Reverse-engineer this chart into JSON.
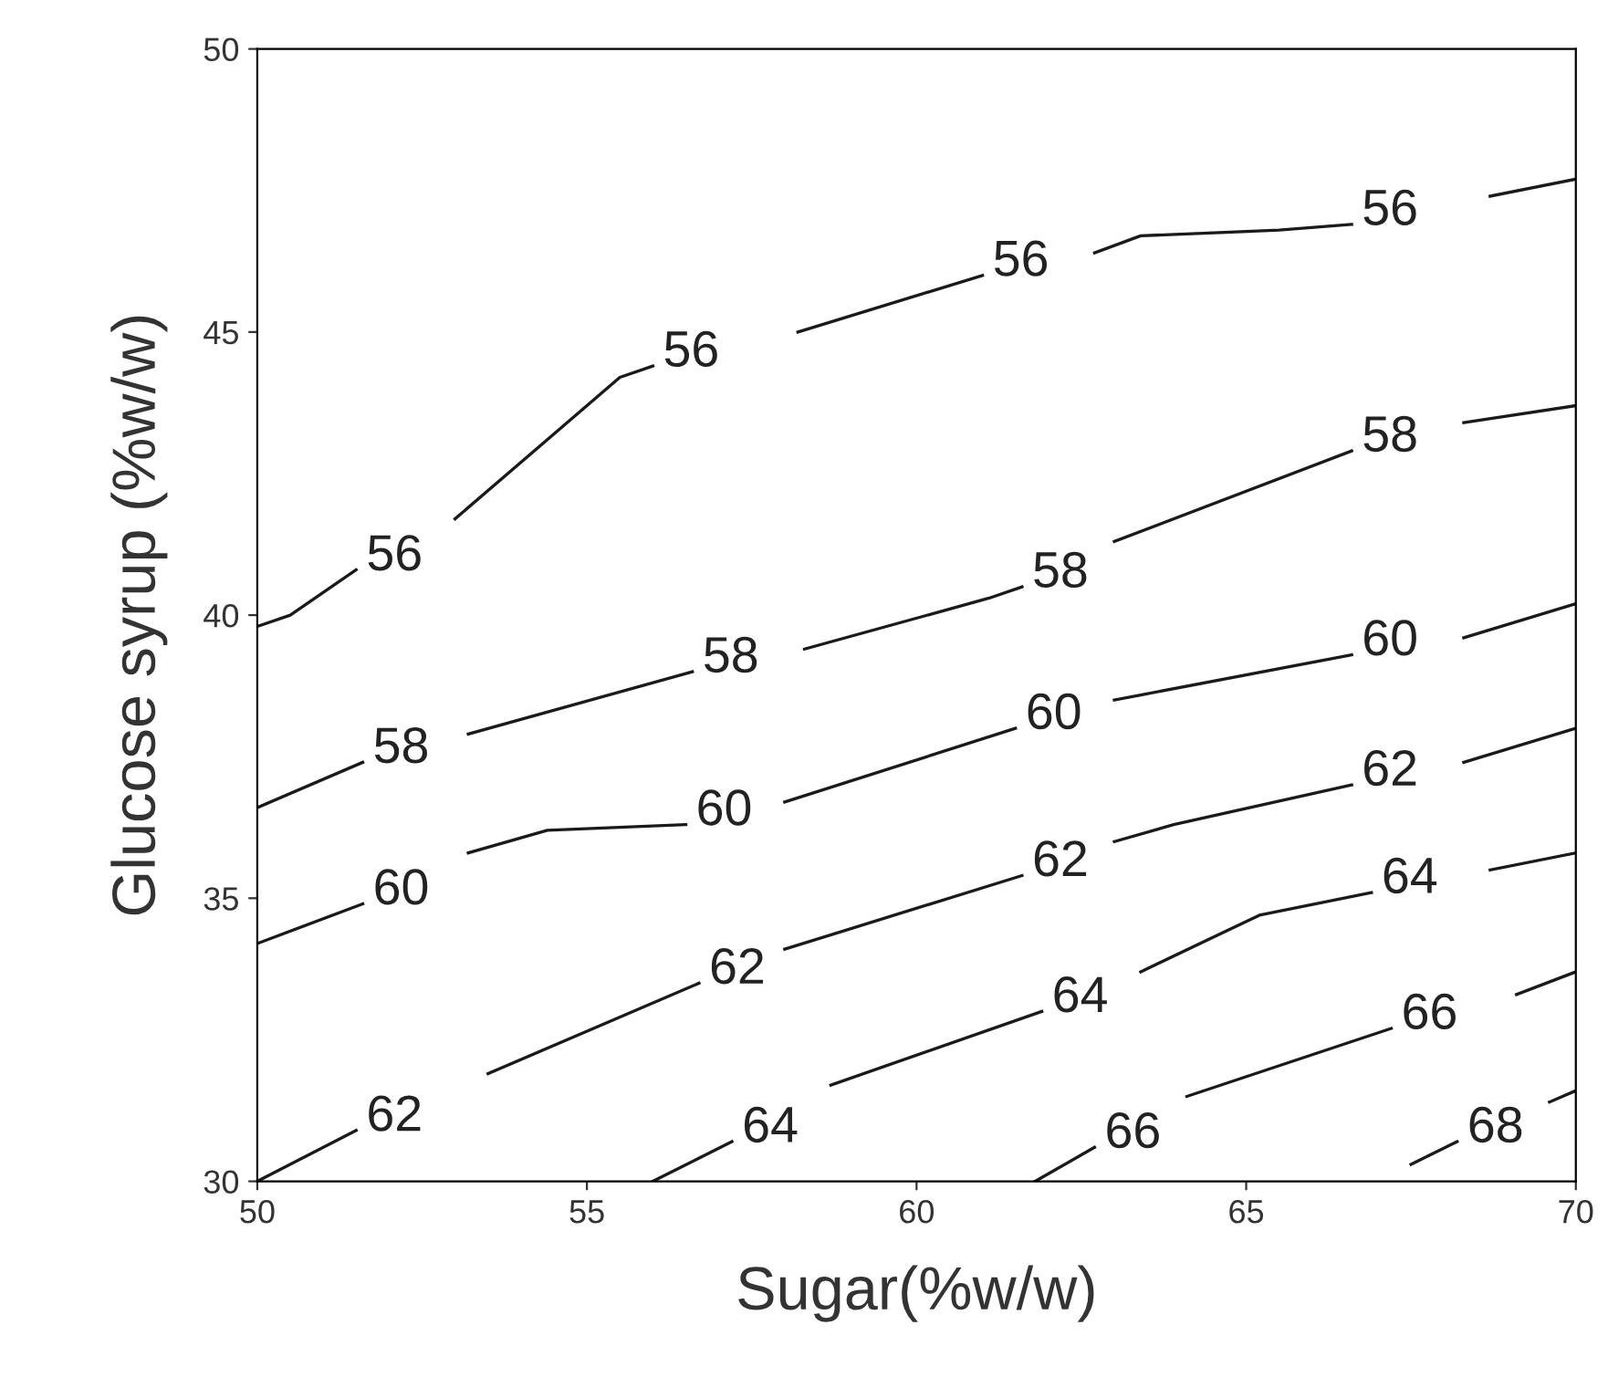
{
  "chart_data": {
    "type": "line",
    "xlabel": "Sugar(%w/w)",
    "ylabel": "Glucose syrup (%w/w)",
    "xlim": [
      50,
      70
    ],
    "ylim": [
      30,
      50
    ],
    "xticks": [
      50,
      55,
      60,
      65,
      70
    ],
    "yticks": [
      30,
      35,
      40,
      45,
      50
    ],
    "grid": false,
    "legend": false,
    "marker": "none",
    "line_style": "solid",
    "series": [
      {
        "color": "#1a1a1a",
        "x": [
          50,
          50.5,
          51.5,
          52.2,
          53,
          55.5,
          56,
          57.1,
          58.2,
          61,
          61.8,
          62.7,
          63.4,
          65.5,
          66.6,
          67.6,
          68.7,
          70
        ],
        "values": [
          39.8,
          40.0,
          40.8,
          null,
          41.7,
          44.2,
          44.4,
          null,
          45.0,
          46.0,
          null,
          46.4,
          46.7,
          46.8,
          46.9,
          null,
          47.4,
          47.7
        ]
      },
      {
        "color": "#1a1a1a",
        "x": [
          50,
          51.6,
          52.4,
          53.2,
          56.6,
          57.4,
          58.3,
          61.1,
          61.6,
          62.3,
          63.0,
          66.6,
          67.4,
          68.3,
          70
        ],
        "values": [
          36.6,
          37.4,
          null,
          37.9,
          39.0,
          null,
          39.4,
          40.3,
          40.5,
          null,
          41.3,
          42.9,
          null,
          43.4,
          43.7
        ]
      },
      {
        "color": "#1a1a1a",
        "x": [
          50,
          51.6,
          52.4,
          53.2,
          54.4,
          56.5,
          57.2,
          58.0,
          61.5,
          62.2,
          63.0,
          66.6,
          67.4,
          68.3,
          70
        ],
        "values": [
          34.2,
          34.9,
          null,
          35.8,
          36.2,
          36.3,
          null,
          36.7,
          38.0,
          null,
          38.5,
          39.3,
          null,
          39.6,
          40.2
        ]
      },
      {
        "color": "#1a1a1a",
        "x": [
          50,
          51.5,
          52.5,
          53.5,
          56.7,
          57.3,
          58.0,
          61.6,
          62.3,
          63.0,
          63.9,
          66.6,
          67.4,
          68.3,
          70
        ],
        "values": [
          30.0,
          30.9,
          null,
          31.9,
          33.5,
          null,
          34.1,
          35.4,
          null,
          36.0,
          36.3,
          37.0,
          null,
          37.4,
          38.0
        ]
      },
      {
        "color": "#1a1a1a",
        "x": [
          56.0,
          57.2,
          57.9,
          58.7,
          61.9,
          62.6,
          63.4,
          65.2,
          66.9,
          67.8,
          68.7,
          70
        ],
        "values": [
          30.0,
          30.7,
          null,
          31.7,
          33.0,
          null,
          33.7,
          34.7,
          35.1,
          null,
          35.5,
          35.8
        ]
      },
      {
        "color": "#1a1a1a",
        "x": [
          61.8,
          62.7,
          63.4,
          64.1,
          67.2,
          68.1,
          69.1,
          70
        ],
        "values": [
          30.0,
          30.6,
          null,
          31.5,
          32.7,
          null,
          33.3,
          33.7
        ]
      },
      {
        "color": "#1a1a1a",
        "x": [
          67.5,
          68.2,
          68.9,
          69.6,
          70
        ],
        "values": [
          30.3,
          30.7,
          null,
          31.4,
          31.6
        ]
      }
    ],
    "annotations": [
      {
        "text": "56",
        "x": 51.5,
        "y": 40.8
      },
      {
        "text": "56",
        "x": 56,
        "y": 44.4
      },
      {
        "text": "56",
        "x": 61,
        "y": 46.0
      },
      {
        "text": "56",
        "x": 66.6,
        "y": 46.9
      },
      {
        "text": "58",
        "x": 51.6,
        "y": 37.4
      },
      {
        "text": "58",
        "x": 56.6,
        "y": 39.0
      },
      {
        "text": "58",
        "x": 61.6,
        "y": 40.5
      },
      {
        "text": "58",
        "x": 66.6,
        "y": 42.9
      },
      {
        "text": "60",
        "x": 51.6,
        "y": 34.9
      },
      {
        "text": "60",
        "x": 56.5,
        "y": 36.3
      },
      {
        "text": "60",
        "x": 61.5,
        "y": 38.0
      },
      {
        "text": "60",
        "x": 66.6,
        "y": 39.3
      },
      {
        "text": "62",
        "x": 51.5,
        "y": 30.9
      },
      {
        "text": "62",
        "x": 56.7,
        "y": 33.5
      },
      {
        "text": "62",
        "x": 61.6,
        "y": 35.4
      },
      {
        "text": "62",
        "x": 66.6,
        "y": 37.0
      },
      {
        "text": "64",
        "x": 57.2,
        "y": 30.7
      },
      {
        "text": "64",
        "x": 61.9,
        "y": 33.0
      },
      {
        "text": "64",
        "x": 66.9,
        "y": 35.1
      },
      {
        "text": "66",
        "x": 62.7,
        "y": 30.6
      },
      {
        "text": "66",
        "x": 67.2,
        "y": 32.7
      },
      {
        "text": "68",
        "x": 68.2,
        "y": 30.7
      }
    ]
  }
}
